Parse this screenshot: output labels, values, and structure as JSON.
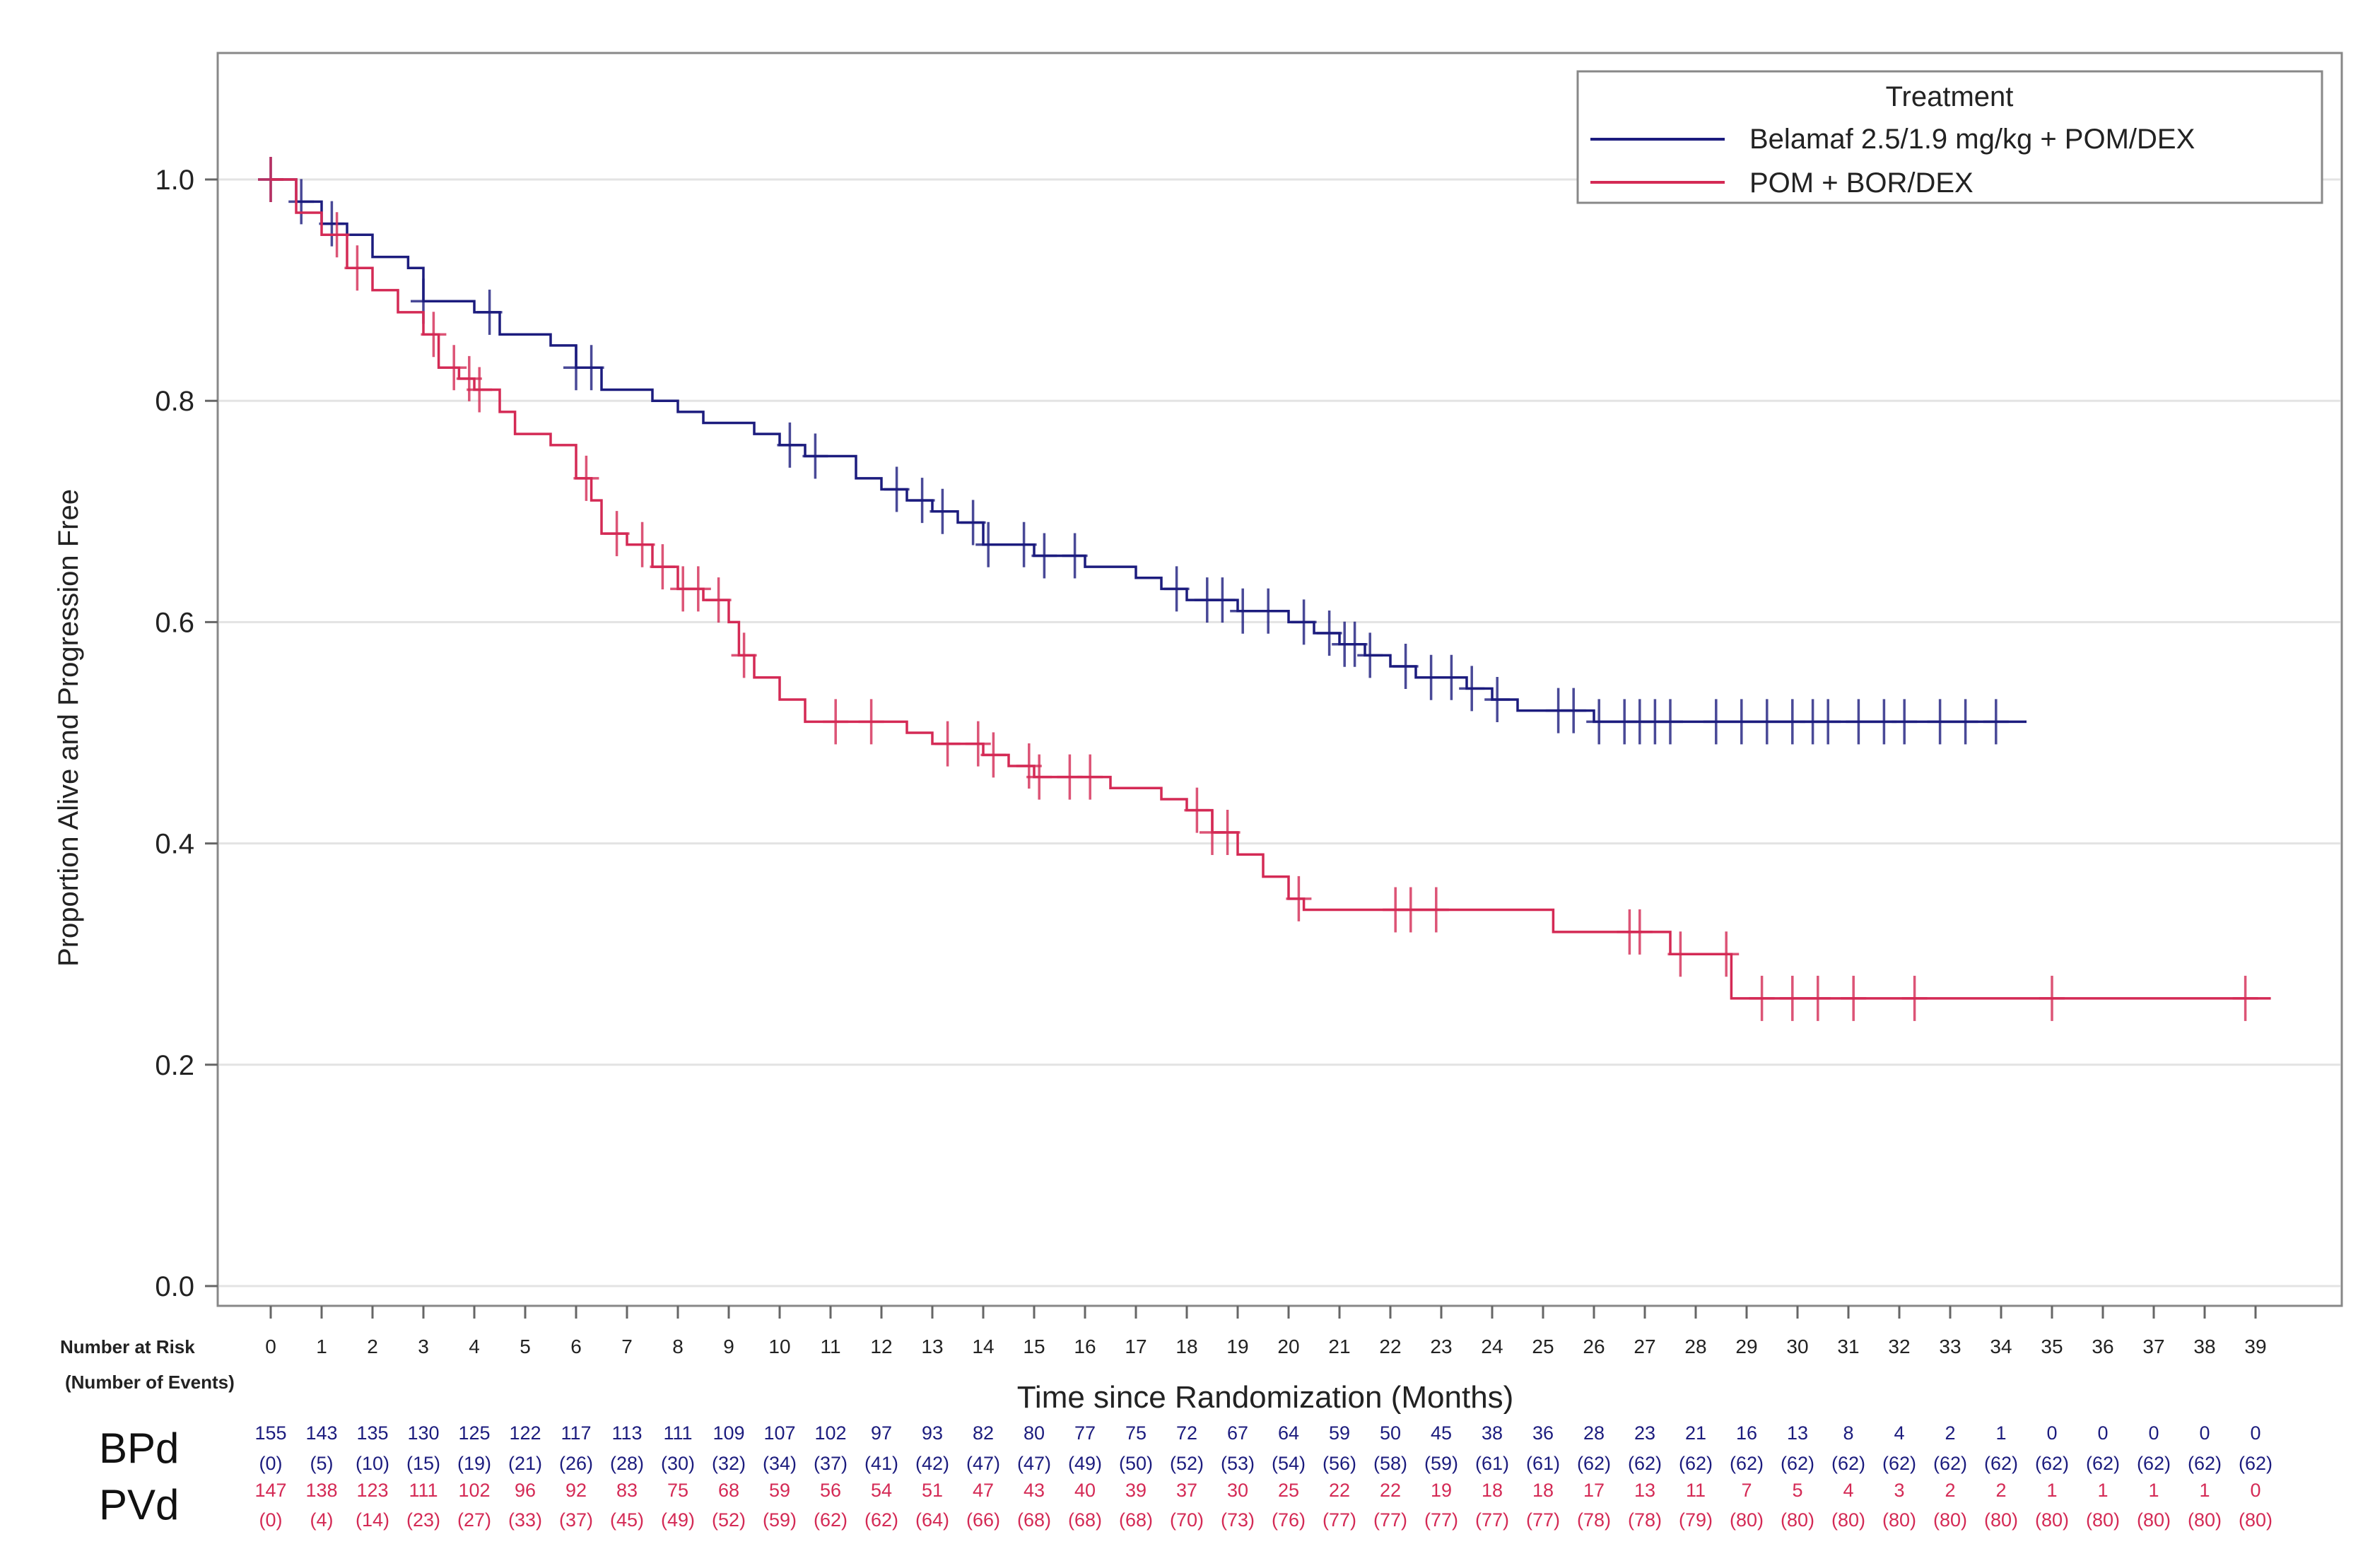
{
  "chart_data": {
    "type": "line",
    "subtype": "kaplan-meier",
    "ylabel": "Proportion Alive and Progression Free",
    "xlabel": "Time since Randomization (Months)",
    "ylim": [
      0,
      1.1
    ],
    "xlim": [
      -1,
      40
    ],
    "yticks": [
      "0.0",
      "0.2",
      "0.4",
      "0.6",
      "0.8",
      "1.0"
    ],
    "xticks": [
      "0",
      "1",
      "2",
      "3",
      "4",
      "5",
      "6",
      "7",
      "8",
      "9",
      "10",
      "11",
      "12",
      "13",
      "14",
      "15",
      "16",
      "17",
      "18",
      "19",
      "20",
      "21",
      "22",
      "23",
      "24",
      "25",
      "26",
      "27",
      "28",
      "29",
      "30",
      "31",
      "32",
      "33",
      "34",
      "35",
      "36",
      "37",
      "38",
      "39"
    ],
    "grid": "horizontal",
    "legend": {
      "title": "Treatment",
      "position": "top-right",
      "entries": [
        "Belamaf 2.5/1.9 mg/kg + POM/DEX",
        "POM + BOR/DEX"
      ]
    },
    "colors": {
      "belamaf": "#1c1c7e",
      "pom": "#d42a55"
    },
    "series": [
      {
        "name": "Belamaf 2.5/1.9 mg/kg + POM/DEX",
        "steps": [
          [
            0,
            1.0
          ],
          [
            0.5,
            0.98
          ],
          [
            1,
            0.96
          ],
          [
            1.5,
            0.95
          ],
          [
            2,
            0.93
          ],
          [
            2.7,
            0.92
          ],
          [
            3,
            0.89
          ],
          [
            4,
            0.88
          ],
          [
            4.5,
            0.86
          ],
          [
            5.5,
            0.85
          ],
          [
            6,
            0.83
          ],
          [
            6.5,
            0.81
          ],
          [
            7.5,
            0.8
          ],
          [
            8,
            0.79
          ],
          [
            8.5,
            0.78
          ],
          [
            9.5,
            0.77
          ],
          [
            10,
            0.76
          ],
          [
            10.5,
            0.75
          ],
          [
            11.5,
            0.73
          ],
          [
            12,
            0.72
          ],
          [
            12.5,
            0.71
          ],
          [
            13,
            0.7
          ],
          [
            13.5,
            0.69
          ],
          [
            14,
            0.67
          ],
          [
            15,
            0.66
          ],
          [
            16,
            0.65
          ],
          [
            17,
            0.64
          ],
          [
            17.5,
            0.63
          ],
          [
            18,
            0.62
          ],
          [
            19,
            0.61
          ],
          [
            20,
            0.6
          ],
          [
            20.5,
            0.59
          ],
          [
            21,
            0.58
          ],
          [
            21.5,
            0.57
          ],
          [
            22,
            0.56
          ],
          [
            22.5,
            0.55
          ],
          [
            23.5,
            0.54
          ],
          [
            24,
            0.53
          ],
          [
            24.5,
            0.52
          ],
          [
            26,
            0.51
          ],
          [
            34.5,
            0.51
          ]
        ],
        "censored": [
          0,
          0.6,
          1.2,
          3,
          4.3,
          6,
          6.3,
          10.2,
          10.7,
          12.3,
          12.8,
          13.2,
          13.8,
          14.1,
          14.8,
          15.2,
          15.8,
          17.8,
          18.4,
          18.7,
          19.1,
          19.6,
          20.3,
          20.8,
          21.1,
          21.3,
          21.6,
          22.3,
          22.8,
          23.2,
          23.6,
          24.1,
          25.3,
          25.6,
          26.1,
          26.6,
          26.9,
          27.2,
          27.5,
          28.4,
          28.9,
          29.4,
          29.9,
          30.3,
          30.6,
          31.2,
          31.7,
          32.1,
          32.8,
          33.3,
          33.9
        ]
      },
      {
        "name": "POM + BOR/DEX",
        "steps": [
          [
            0,
            1.0
          ],
          [
            0.5,
            0.97
          ],
          [
            1,
            0.95
          ],
          [
            1.5,
            0.92
          ],
          [
            2,
            0.9
          ],
          [
            2.5,
            0.88
          ],
          [
            3,
            0.86
          ],
          [
            3.3,
            0.83
          ],
          [
            3.7,
            0.82
          ],
          [
            4,
            0.81
          ],
          [
            4.5,
            0.79
          ],
          [
            4.8,
            0.77
          ],
          [
            5.5,
            0.76
          ],
          [
            6,
            0.73
          ],
          [
            6.3,
            0.71
          ],
          [
            6.5,
            0.68
          ],
          [
            7,
            0.67
          ],
          [
            7.5,
            0.65
          ],
          [
            8,
            0.63
          ],
          [
            8.5,
            0.62
          ],
          [
            9,
            0.6
          ],
          [
            9.2,
            0.57
          ],
          [
            9.5,
            0.55
          ],
          [
            10,
            0.53
          ],
          [
            10.5,
            0.51
          ],
          [
            12.5,
            0.5
          ],
          [
            13,
            0.49
          ],
          [
            14,
            0.48
          ],
          [
            14.5,
            0.47
          ],
          [
            15,
            0.46
          ],
          [
            16.5,
            0.45
          ],
          [
            17.5,
            0.44
          ],
          [
            18,
            0.43
          ],
          [
            18.5,
            0.41
          ],
          [
            19,
            0.39
          ],
          [
            19.5,
            0.37
          ],
          [
            20,
            0.35
          ],
          [
            20.3,
            0.34
          ],
          [
            25.2,
            0.32
          ],
          [
            27.5,
            0.3
          ],
          [
            28.7,
            0.26
          ],
          [
            39.3,
            0.26
          ]
        ],
        "censored": [
          0,
          1.3,
          1.7,
          3.2,
          3.6,
          3.9,
          4.1,
          6.2,
          6.8,
          7.3,
          7.7,
          8.1,
          8.4,
          8.8,
          9.3,
          11.1,
          11.8,
          13.3,
          13.9,
          14.2,
          14.9,
          15.1,
          15.7,
          16.1,
          18.2,
          18.5,
          18.8,
          20.2,
          22.1,
          22.4,
          22.9,
          26.7,
          26.9,
          27.7,
          28.6,
          29.3,
          29.9,
          30.4,
          31.1,
          32.3,
          35,
          38.8
        ]
      }
    ],
    "risk_table": {
      "header": "Number at Risk",
      "subheader": "(Number of Events)",
      "rows": [
        {
          "label": "BPd",
          "at_risk": [
            "155",
            "143",
            "135",
            "130",
            "125",
            "122",
            "117",
            "113",
            "111",
            "109",
            "107",
            "102",
            "97",
            "93",
            "82",
            "80",
            "77",
            "75",
            "72",
            "67",
            "64",
            "59",
            "50",
            "45",
            "38",
            "36",
            "28",
            "23",
            "21",
            "16",
            "13",
            "8",
            "4",
            "2",
            "1",
            "0",
            "0",
            "0",
            "0",
            "0"
          ],
          "events": [
            "(0)",
            "(5)",
            "(10)",
            "(15)",
            "(19)",
            "(21)",
            "(26)",
            "(28)",
            "(30)",
            "(32)",
            "(34)",
            "(37)",
            "(41)",
            "(42)",
            "(47)",
            "(47)",
            "(49)",
            "(50)",
            "(52)",
            "(53)",
            "(54)",
            "(56)",
            "(58)",
            "(59)",
            "(61)",
            "(61)",
            "(62)",
            "(62)",
            "(62)",
            "(62)",
            "(62)",
            "(62)",
            "(62)",
            "(62)",
            "(62)",
            "(62)",
            "(62)",
            "(62)",
            "(62)",
            "(62)"
          ]
        },
        {
          "label": "PVd",
          "at_risk": [
            "147",
            "138",
            "123",
            "111",
            "102",
            "96",
            "92",
            "83",
            "75",
            "68",
            "59",
            "56",
            "54",
            "51",
            "47",
            "43",
            "40",
            "39",
            "37",
            "30",
            "25",
            "22",
            "22",
            "19",
            "18",
            "18",
            "17",
            "13",
            "11",
            "7",
            "5",
            "4",
            "3",
            "2",
            "2",
            "1",
            "1",
            "1",
            "1",
            "0"
          ],
          "events": [
            "(0)",
            "(4)",
            "(14)",
            "(23)",
            "(27)",
            "(33)",
            "(37)",
            "(45)",
            "(49)",
            "(52)",
            "(59)",
            "(62)",
            "(62)",
            "(64)",
            "(66)",
            "(68)",
            "(68)",
            "(68)",
            "(70)",
            "(73)",
            "(76)",
            "(77)",
            "(77)",
            "(77)",
            "(77)",
            "(77)",
            "(78)",
            "(78)",
            "(79)",
            "(80)",
            "(80)",
            "(80)",
            "(80)",
            "(80)",
            "(80)",
            "(80)",
            "(80)",
            "(80)",
            "(80)",
            "(80)"
          ]
        }
      ]
    }
  }
}
